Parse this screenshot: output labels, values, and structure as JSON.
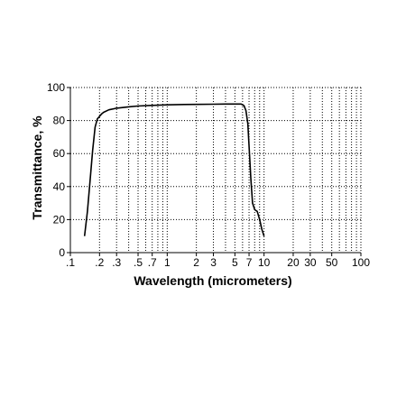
{
  "chart_data": {
    "type": "line",
    "title": "",
    "xlabel": "Wavelength (micrometers)",
    "ylabel": "Transmittance, %",
    "x_scale": "log",
    "xlim": [
      0.1,
      100
    ],
    "ylim": [
      0,
      100
    ],
    "x_ticks": [
      {
        "value": 0.1,
        "label": ".1"
      },
      {
        "value": 0.2,
        "label": ".2"
      },
      {
        "value": 0.3,
        "label": ".3"
      },
      {
        "value": 0.5,
        "label": ".5"
      },
      {
        "value": 0.7,
        "label": ".7"
      },
      {
        "value": 1,
        "label": "1"
      },
      {
        "value": 2,
        "label": "2"
      },
      {
        "value": 3,
        "label": "3"
      },
      {
        "value": 5,
        "label": "5"
      },
      {
        "value": 7,
        "label": "7"
      },
      {
        "value": 10,
        "label": "10"
      },
      {
        "value": 20,
        "label": "20"
      },
      {
        "value": 30,
        "label": "30"
      },
      {
        "value": 50,
        "label": "50"
      },
      {
        "value": 100,
        "label": "100"
      }
    ],
    "y_ticks": [
      0,
      20,
      40,
      60,
      80,
      100
    ],
    "x_minor_gridlines": [
      0.1,
      0.2,
      0.3,
      0.4,
      0.5,
      0.6,
      0.7,
      0.8,
      0.9,
      1,
      2,
      3,
      4,
      5,
      6,
      7,
      8,
      9,
      10,
      20,
      30,
      40,
      50,
      60,
      70,
      80,
      90,
      100
    ],
    "grid": true,
    "grid_style": "dotted",
    "line_color": "#000000",
    "series": [
      {
        "x": [
          0.14,
          0.15,
          0.16,
          0.17,
          0.18,
          0.19,
          0.2,
          0.21,
          0.22,
          0.25,
          0.3,
          0.4,
          0.5,
          0.7,
          1,
          1.5,
          2,
          3,
          4,
          5,
          5.8,
          6.2,
          6.5,
          6.8,
          7,
          7.3,
          7.6,
          8,
          8.5,
          9,
          9.5,
          10
        ],
        "y": [
          10,
          25,
          44,
          62,
          76,
          81,
          82.5,
          84,
          85,
          86.5,
          87.5,
          88.3,
          88.8,
          89.2,
          89.5,
          89.7,
          89.8,
          89.9,
          90,
          90,
          90,
          89,
          86,
          78,
          65,
          45,
          30,
          26,
          25,
          20,
          14,
          10
        ]
      }
    ]
  }
}
